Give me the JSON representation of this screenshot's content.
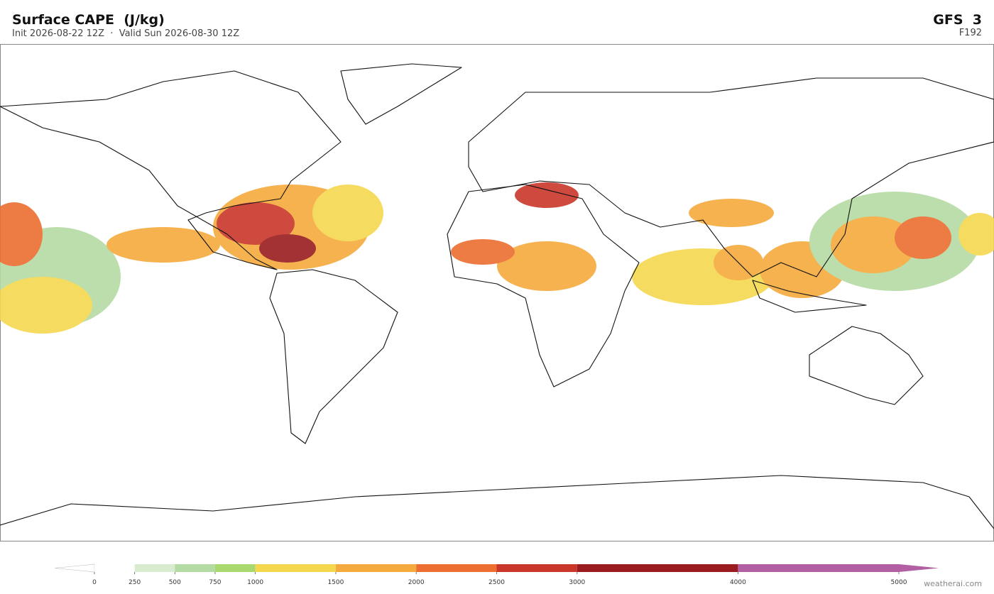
{
  "header": {
    "title": "Surface CAPE  (J/kg)",
    "subtitle": "Init 2026-08-22 12Z  ·  Valid Sun 2026-08-30 12Z",
    "model": "GFS  3",
    "forecast_hour": "F192"
  },
  "colorbar": {
    "ticks": [
      0,
      250,
      500,
      750,
      1000,
      1500,
      2000,
      2500,
      3000,
      4000,
      5000
    ],
    "colors": [
      "#ffffff",
      "#d9ecd0",
      "#b5dba4",
      "#a9d96e",
      "#f5d84e",
      "#f4aa3c",
      "#ec6e30",
      "#c9372a",
      "#9a1c20",
      "#b35fa3"
    ],
    "under_color": "#ffffff",
    "over_color": "#b35fa3"
  },
  "footer": {
    "credit": "weatherai.com"
  }
}
